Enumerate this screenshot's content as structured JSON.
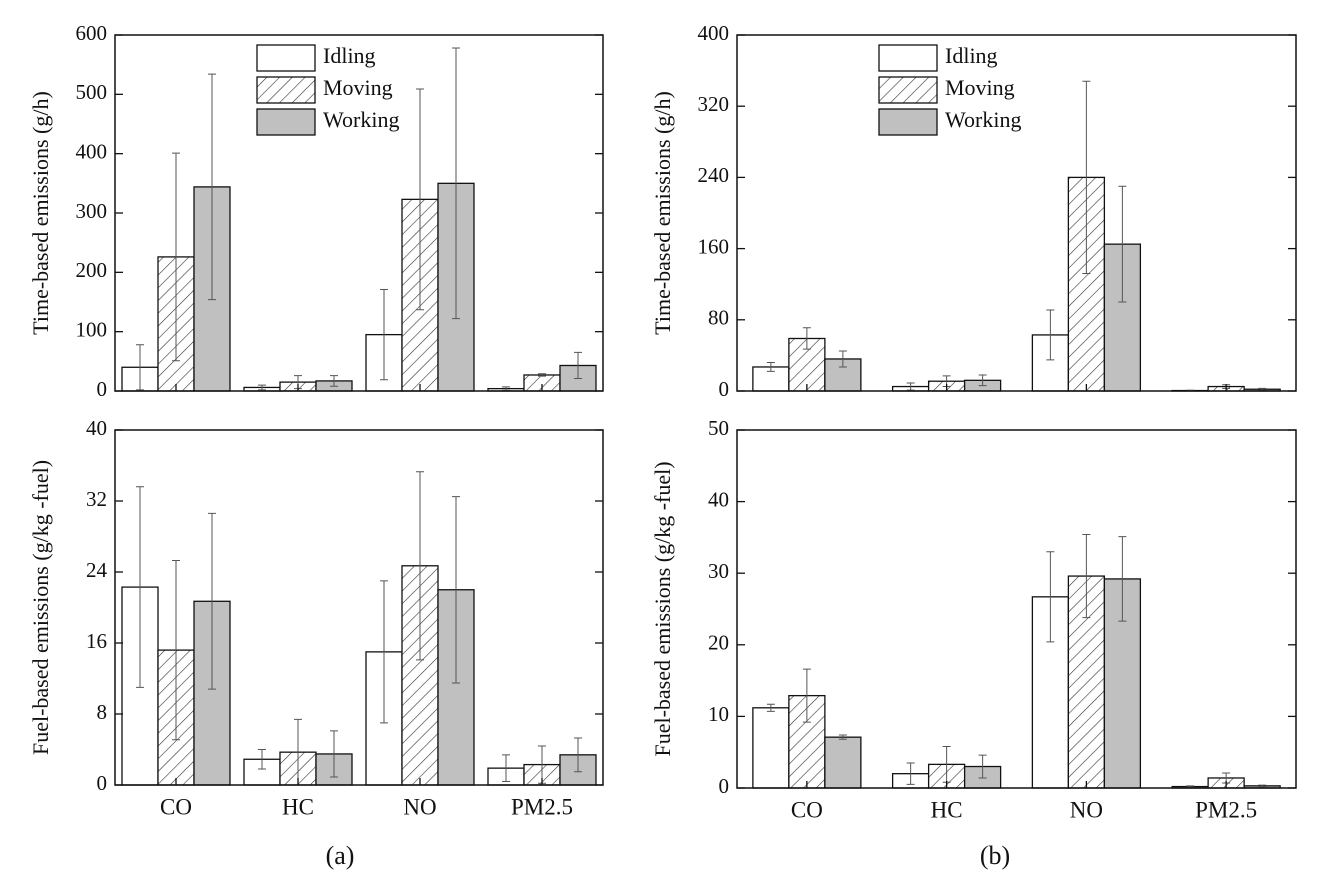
{
  "panel_labels": [
    "(a)",
    "(b)"
  ],
  "chart_data": [
    {
      "type": "bar",
      "ylabel": "Time-based emissions (g/h)",
      "ylim": [
        0,
        600
      ],
      "yticks": [
        0,
        100,
        200,
        300,
        400,
        500,
        600
      ],
      "legend": "upper left",
      "series": [
        {
          "name": "Idling",
          "color": "#ffffff",
          "pattern": "none",
          "values": [
            40,
            6,
            95,
            4
          ],
          "errors": [
            38,
            4,
            76,
            3
          ]
        },
        {
          "name": "Moving",
          "color": "#ffffff",
          "pattern": "hatch",
          "values": [
            226,
            15,
            323,
            27
          ],
          "errors": [
            175,
            11,
            186,
            2
          ]
        },
        {
          "name": "Working",
          "color": "#c0c0c0",
          "pattern": "none",
          "values": [
            344,
            17,
            350,
            43
          ],
          "errors": [
            190,
            9,
            228,
            22
          ]
        }
      ]
    },
    {
      "type": "bar",
      "ylabel": "Time-based emissions (g/h)",
      "ylim": [
        0,
        400
      ],
      "yticks": [
        0,
        80,
        160,
        240,
        320,
        400
      ],
      "legend": "upper left",
      "series": [
        {
          "name": "Idling",
          "color": "#ffffff",
          "pattern": "none",
          "values": [
            27,
            5,
            63,
            0.5
          ],
          "errors": [
            5,
            4,
            28,
            0.3
          ]
        },
        {
          "name": "Moving",
          "color": "#ffffff",
          "pattern": "hatch",
          "values": [
            59,
            11,
            240,
            5
          ],
          "errors": [
            12,
            6,
            108,
            2
          ]
        },
        {
          "name": "Working",
          "color": "#c0c0c0",
          "pattern": "none",
          "values": [
            36,
            12,
            165,
            2
          ],
          "errors": [
            9,
            6,
            65,
            1
          ]
        }
      ]
    },
    {
      "type": "bar",
      "ylabel": "Fuel-based emissions (g/kg -fuel)",
      "ylim": [
        0,
        40
      ],
      "yticks": [
        0,
        8,
        16,
        24,
        32,
        40
      ],
      "categories": [
        "CO",
        "HC",
        "NO",
        "PM2.5"
      ],
      "series": [
        {
          "color": "#ffffff",
          "pattern": "none",
          "values": [
            22.3,
            2.9,
            15,
            1.9
          ],
          "errors": [
            11.3,
            1.1,
            8,
            1.5
          ]
        },
        {
          "color": "#ffffff",
          "pattern": "hatch",
          "values": [
            15.2,
            3.7,
            24.7,
            2.3
          ],
          "errors": [
            10.1,
            3.7,
            10.6,
            2.1
          ]
        },
        {
          "color": "#c0c0c0",
          "pattern": "none",
          "values": [
            20.7,
            3.5,
            22,
            3.4
          ],
          "errors": [
            9.9,
            2.6,
            10.5,
            1.9
          ]
        }
      ]
    },
    {
      "type": "bar",
      "ylabel": "Fuel-based emissions (g/kg -fuel)",
      "ylim": [
        0,
        50
      ],
      "yticks": [
        0,
        10,
        20,
        30,
        40,
        50
      ],
      "categories": [
        "CO",
        "HC",
        "NO",
        "PM2.5"
      ],
      "series": [
        {
          "color": "#ffffff",
          "pattern": "none",
          "values": [
            11.2,
            2.0,
            26.7,
            0.2
          ],
          "errors": [
            0.5,
            1.5,
            6.3,
            0.1
          ]
        },
        {
          "color": "#ffffff",
          "pattern": "hatch",
          "values": [
            12.9,
            3.3,
            29.6,
            1.4
          ],
          "errors": [
            3.7,
            2.5,
            5.8,
            0.7
          ]
        },
        {
          "color": "#c0c0c0",
          "pattern": "none",
          "values": [
            7.1,
            3.0,
            29.2,
            0.3
          ],
          "errors": [
            0.3,
            1.6,
            5.9,
            0.1
          ]
        }
      ]
    }
  ]
}
